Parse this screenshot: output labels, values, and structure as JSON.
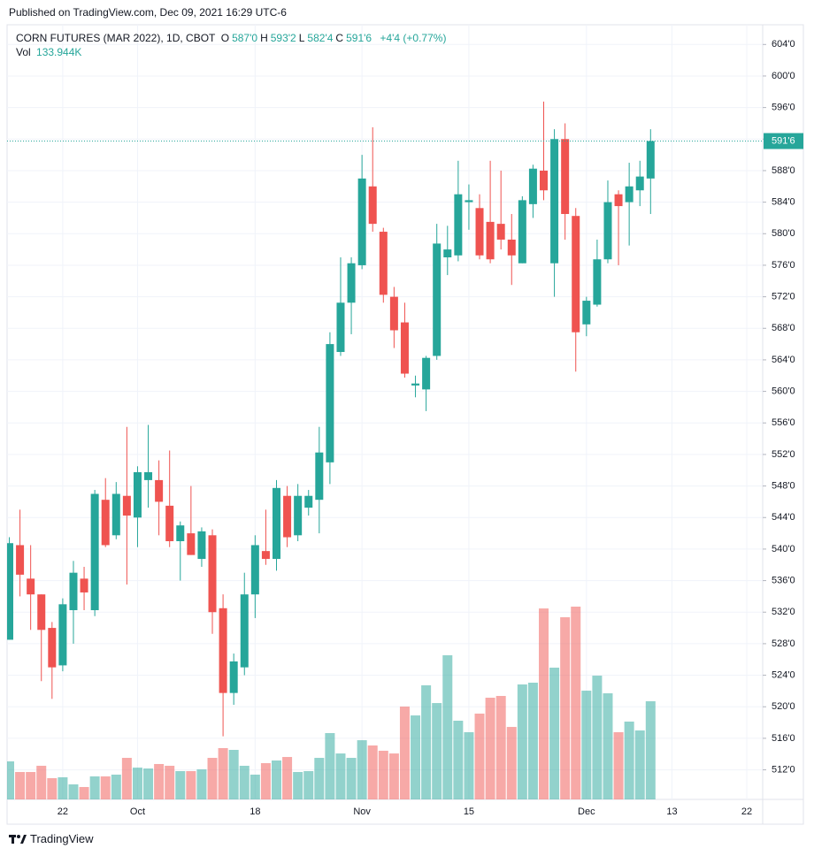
{
  "published": "Published on TradingView.com, Dec 09, 2021 16:29 UTC-6",
  "header": {
    "symbol": "CORN FUTURES (MAR 2022), 1D, CBOT",
    "ohlc": [
      {
        "key": "O",
        "value": 587,
        "label": "587'0"
      },
      {
        "key": "H",
        "value": 593.25,
        "label": "593'2"
      },
      {
        "key": "L",
        "value": 582.5,
        "label": "582'4"
      },
      {
        "key": "C",
        "value": 591.75,
        "label": "591'6"
      }
    ],
    "change": "+4'4 (+0.77%)",
    "volume_key": "Vol",
    "volume_label": "133.944K"
  },
  "footer": "TradingView",
  "chart_data": {
    "type": "candlestick",
    "up_color": "#26a69a",
    "down_color": "#ef5350",
    "grid": true,
    "categories": [
      null,
      null,
      null,
      null,
      null,
      "22",
      null,
      null,
      null,
      null,
      null,
      null,
      "Oct",
      null,
      null,
      null,
      null,
      null,
      null,
      null,
      null,
      null,
      null,
      "18",
      null,
      null,
      null,
      null,
      null,
      null,
      null,
      null,
      null,
      "Nov",
      null,
      null,
      null,
      null,
      null,
      null,
      null,
      null,
      null,
      "15",
      null,
      null,
      null,
      null,
      null,
      null,
      null,
      null,
      null,
      null,
      "Dec",
      null,
      null,
      null,
      null,
      null,
      null,
      null,
      "13",
      null,
      null,
      null,
      null,
      null,
      null,
      "22",
      null
    ],
    "open": [
      528.5,
      540.5,
      536.25,
      534.25,
      530,
      525.25,
      532.25,
      536.25,
      532.25,
      546.25,
      541.75,
      546.75,
      544,
      548.75,
      548.75,
      545.5,
      541,
      542,
      538.75,
      541.75,
      532.5,
      521.75,
      525,
      534.25,
      539.75,
      538.75,
      546.75,
      541.75,
      545.25,
      546.25,
      551,
      565,
      571.25,
      576,
      586,
      580.25,
      572,
      568.75,
      560.75,
      560.25,
      564.5,
      577,
      577.25,
      584,
      583.25,
      581.5,
      581.25,
      579.25,
      576.25,
      583.75,
      588,
      576.25,
      592,
      582.25,
      568.5,
      571,
      576.75,
      585,
      584,
      585.5,
      587,
      null,
      null,
      null,
      null,
      null,
      null,
      null,
      null,
      null,
      null
    ],
    "high": [
      541.5,
      545,
      540.5,
      534.25,
      530.75,
      533.75,
      538.5,
      537.75,
      547.5,
      549,
      548.5,
      555.5,
      550.5,
      555.75,
      551.25,
      552.5,
      543.5,
      548,
      542.75,
      542.5,
      534.25,
      526.75,
      537,
      541.75,
      545,
      548.75,
      548,
      548.25,
      547.5,
      555.5,
      567.5,
      577,
      577,
      590,
      593.5,
      580.75,
      573.25,
      571.25,
      562,
      564.5,
      581.25,
      581,
      589.25,
      586.25,
      585,
      589.25,
      588,
      582.5,
      584.75,
      588.75,
      596.75,
      593.25,
      594,
      583.25,
      572,
      579.25,
      586.75,
      585.5,
      589,
      589.25,
      593.25,
      null,
      null,
      null,
      null,
      null,
      null,
      null,
      null,
      null,
      null
    ],
    "low": [
      528.5,
      534,
      529.75,
      523.25,
      521,
      524.5,
      528,
      532.25,
      531.5,
      540.25,
      541.25,
      535.5,
      540.25,
      545.25,
      541.75,
      540.25,
      536,
      539.25,
      537.75,
      529.25,
      516.25,
      520.25,
      524,
      531.25,
      538,
      537.25,
      540.25,
      541,
      544.25,
      542,
      548.25,
      564.5,
      567.25,
      575.5,
      580.25,
      571.25,
      565.5,
      561.75,
      559.25,
      557.5,
      564,
      574.75,
      576.5,
      580.5,
      576.75,
      576.25,
      578,
      573.5,
      576.25,
      582,
      584.25,
      572,
      579.25,
      562.5,
      567,
      570.75,
      576.25,
      576,
      578.5,
      583.5,
      582.5,
      null,
      null,
      null,
      null,
      null,
      null,
      null,
      null,
      null,
      null
    ],
    "close": [
      540.75,
      536.75,
      534.25,
      529.75,
      525,
      533,
      537,
      534.5,
      547,
      540.5,
      547,
      544.25,
      549.75,
      549.75,
      546,
      541,
      543,
      539.25,
      542.25,
      532,
      521.75,
      525.75,
      534.25,
      540.5,
      538.75,
      547.75,
      541.5,
      546.75,
      546.75,
      552.25,
      566,
      571.25,
      576.25,
      587,
      581.25,
      572.25,
      567.75,
      562.25,
      561,
      564.25,
      578.75,
      578,
      585,
      584.25,
      577.25,
      576.75,
      579.25,
      577.25,
      584.25,
      588.25,
      585.5,
      592,
      582.5,
      567.5,
      571.5,
      576.75,
      584,
      583.5,
      586,
      587.25,
      591.75,
      null,
      null,
      null,
      null,
      null,
      null,
      null,
      null,
      null,
      null
    ],
    "volume": [
      51900,
      37400,
      37400,
      45900,
      29000,
      30200,
      20500,
      16900,
      31400,
      31400,
      33800,
      56700,
      43400,
      42200,
      48300,
      45900,
      38600,
      38600,
      41000,
      56700,
      70000,
      67600,
      45900,
      33800,
      49500,
      53100,
      57900,
      37400,
      38600,
      56700,
      90500,
      62700,
      56700,
      80800,
      73600,
      66400,
      62700,
      126700,
      114600,
      155700,
      131500,
      196700,
      107400,
      91700,
      117100,
      138800,
      141200,
      98900,
      156900,
      159300,
      260600,
      179800,
      248600,
      263100,
      148400,
      168900,
      144800,
      91700,
      106200,
      94100,
      133944,
      null,
      null,
      null,
      null,
      null,
      null,
      null,
      null,
      null,
      null
    ],
    "ylim": [
      508.25,
      606.5
    ],
    "yticks": [
      {
        "value": 512,
        "label": "512'0"
      },
      {
        "value": 516,
        "label": "516'0"
      },
      {
        "value": 520,
        "label": "520'0"
      },
      {
        "value": 524,
        "label": "524'0"
      },
      {
        "value": 528,
        "label": "528'0"
      },
      {
        "value": 532,
        "label": "532'0"
      },
      {
        "value": 536,
        "label": "536'0"
      },
      {
        "value": 540,
        "label": "540'0"
      },
      {
        "value": 544,
        "label": "544'0"
      },
      {
        "value": 548,
        "label": "548'0"
      },
      {
        "value": 552,
        "label": "552'0"
      },
      {
        "value": 556,
        "label": "556'0"
      },
      {
        "value": 560,
        "label": "560'0"
      },
      {
        "value": 564,
        "label": "564'0"
      },
      {
        "value": 568,
        "label": "568'0"
      },
      {
        "value": 572,
        "label": "572'0"
      },
      {
        "value": 576,
        "label": "576'0"
      },
      {
        "value": 580,
        "label": "580'0"
      },
      {
        "value": 584,
        "label": "584'0"
      },
      {
        "value": 588,
        "label": "588'0"
      },
      {
        "value": 592,
        "label": "592'0"
      },
      {
        "value": 596,
        "label": "596'0"
      },
      {
        "value": 600,
        "label": "600'0"
      },
      {
        "value": 604,
        "label": "604'0"
      }
    ]
  }
}
